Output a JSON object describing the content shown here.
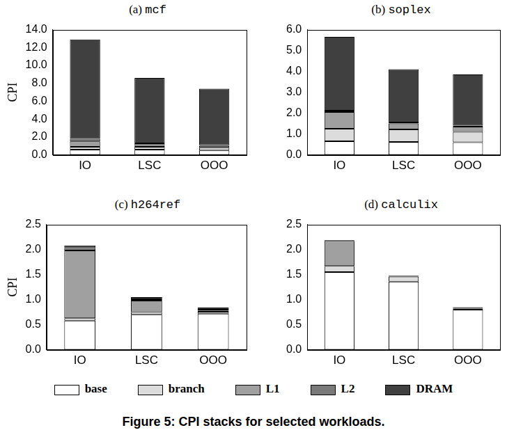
{
  "caption": "Figure 5:  CPI stacks for selected workloads.",
  "chart_data": [
    {
      "type": "bar",
      "title": "(a) mcf",
      "y_label": "CPI",
      "stacked": true,
      "grid": false,
      "legend": "bottom",
      "categories": [
        "IO",
        "LSC",
        "OOO"
      ],
      "ylim": [
        0,
        14
      ],
      "yticks": [
        {
          "value": 0,
          "label": "0.0"
        },
        {
          "value": 2,
          "label": "2.0"
        },
        {
          "value": 4,
          "label": "4.0"
        },
        {
          "value": 6,
          "label": "6.0"
        },
        {
          "value": 8,
          "label": "8.0"
        },
        {
          "value": 10,
          "label": "10.0"
        },
        {
          "value": 12,
          "label": "12.0"
        },
        {
          "value": 14,
          "label": "14.0"
        }
      ],
      "series": [
        {
          "name": "base",
          "color": "#ffffff",
          "values": [
            0.6,
            0.6,
            0.5
          ]
        },
        {
          "name": "branch",
          "color": "#dcdcdc",
          "values": [
            0.3,
            0.3,
            0.3
          ]
        },
        {
          "name": "L1",
          "color": "#a0a0a0",
          "values": [
            0.6,
            0.2,
            0.2
          ]
        },
        {
          "name": "L2",
          "color": "#7a7a7a",
          "values": [
            0.3,
            0.2,
            0.1
          ]
        },
        {
          "name": "DRAM",
          "color": "#404040",
          "values": [
            11.1,
            7.3,
            6.3
          ]
        }
      ]
    },
    {
      "type": "bar",
      "title": "(b) soplex",
      "stacked": true,
      "grid": false,
      "legend": "bottom",
      "categories": [
        "IO",
        "LSC",
        "OOO"
      ],
      "ylim": [
        0,
        6
      ],
      "yticks": [
        {
          "value": 0,
          "label": "0.0"
        },
        {
          "value": 1,
          "label": "1.0"
        },
        {
          "value": 2,
          "label": "2.0"
        },
        {
          "value": 3,
          "label": "3.0"
        },
        {
          "value": 4,
          "label": "4.0"
        },
        {
          "value": 5,
          "label": "5.0"
        },
        {
          "value": 6,
          "label": "6.0"
        }
      ],
      "series": [
        {
          "name": "base",
          "color": "#ffffff",
          "values": [
            0.65,
            0.62,
            0.6
          ]
        },
        {
          "name": "branch",
          "color": "#dcdcdc",
          "values": [
            0.6,
            0.6,
            0.5
          ]
        },
        {
          "name": "L1",
          "color": "#a0a0a0",
          "values": [
            0.8,
            0.28,
            0.25
          ]
        },
        {
          "name": "L2",
          "color": "#7a7a7a",
          "values": [
            0.07,
            0.05,
            0.05
          ]
        },
        {
          "name": "DRAM",
          "color": "#404040",
          "values": [
            3.53,
            2.55,
            2.45
          ]
        }
      ]
    },
    {
      "type": "bar",
      "title": "(c) h264ref",
      "y_label": "CPI",
      "stacked": true,
      "grid": false,
      "legend": "bottom",
      "categories": [
        "IO",
        "LSC",
        "OOO"
      ],
      "ylim": [
        0,
        2.5
      ],
      "yticks": [
        {
          "value": 0,
          "label": "0.0"
        },
        0.5,
        {
          "value": 1,
          "label": "1.0"
        },
        1.5,
        {
          "value": 2,
          "label": "2.0"
        },
        2.5
      ],
      "series": [
        {
          "name": "base",
          "color": "#ffffff",
          "values": [
            0.58,
            0.7,
            0.72
          ]
        },
        {
          "name": "branch",
          "color": "#dcdcdc",
          "values": [
            0.05,
            0.05,
            0.04
          ]
        },
        {
          "name": "L1",
          "color": "#a0a0a0",
          "values": [
            1.35,
            0.23,
            0.02
          ]
        },
        {
          "name": "L2",
          "color": "#7a7a7a",
          "values": [
            0.05,
            0.03,
            0.02
          ]
        },
        {
          "name": "DRAM",
          "color": "#404040",
          "values": [
            0.05,
            0.04,
            0.04
          ]
        }
      ]
    },
    {
      "type": "bar",
      "title": "(d) calculix",
      "stacked": true,
      "grid": false,
      "legend": "bottom",
      "categories": [
        "IO",
        "LSC",
        "OOO"
      ],
      "ylim": [
        0,
        2.5
      ],
      "yticks": [
        {
          "value": 0,
          "label": "0.0"
        },
        0.5,
        {
          "value": 1,
          "label": "1.0"
        },
        1.5,
        {
          "value": 2,
          "label": "2.0"
        },
        2.5
      ],
      "series": [
        {
          "name": "base",
          "color": "#ffffff",
          "values": [
            1.55,
            1.36,
            0.8
          ]
        },
        {
          "name": "branch",
          "color": "#dcdcdc",
          "values": [
            0.12,
            0.1,
            0.02
          ]
        },
        {
          "name": "L1",
          "color": "#a0a0a0",
          "values": [
            0.5,
            0.01,
            0.01
          ]
        },
        {
          "name": "L2",
          "color": "#7a7a7a",
          "values": [
            0.01,
            0.0,
            0.01
          ]
        },
        {
          "name": "DRAM",
          "color": "#404040",
          "values": [
            0.01,
            0.01,
            0.01
          ]
        }
      ]
    }
  ]
}
